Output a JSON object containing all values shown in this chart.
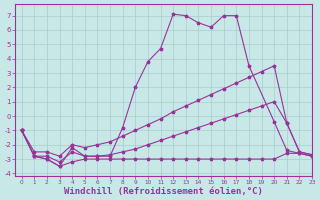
{
  "background_color": "#c8e8e8",
  "grid_color": "#a8cccc",
  "line_color": "#993399",
  "xlabel": "Windchill (Refroidissement éolien,°C)",
  "xlabel_fontsize": 6.5,
  "xlim": [
    -0.5,
    23
  ],
  "ylim": [
    -4.2,
    7.8
  ],
  "ytick_values": [
    -4,
    -3,
    -2,
    -1,
    0,
    1,
    2,
    3,
    4,
    5,
    6,
    7
  ],
  "xtick_labels": [
    "0",
    "1",
    "2",
    "3",
    "4",
    "5",
    "6",
    "7",
    "8",
    "9",
    "10",
    "11",
    "12",
    "13",
    "14",
    "15",
    "16",
    "17",
    "18",
    "19",
    "20",
    "21",
    "22",
    "23"
  ],
  "lines": [
    {
      "x": [
        0,
        1,
        2,
        3,
        4,
        5,
        6,
        7,
        8,
        9,
        10,
        11,
        12,
        13,
        14,
        15,
        16,
        17,
        18,
        20,
        21,
        22,
        23
      ],
      "y": [
        -1.0,
        -2.8,
        -3.0,
        -3.5,
        -2.2,
        -2.8,
        -2.8,
        -2.8,
        -0.8,
        2.0,
        3.8,
        4.7,
        7.1,
        7.0,
        6.5,
        6.2,
        7.0,
        7.0,
        3.5,
        -0.4,
        -2.4,
        -2.6,
        -2.8
      ]
    },
    {
      "x": [
        0,
        1,
        2,
        3,
        4,
        5,
        6,
        7,
        8,
        9,
        10,
        11,
        12,
        13,
        14,
        15,
        16,
        17,
        18,
        19,
        20,
        21,
        22,
        23
      ],
      "y": [
        -1.0,
        -2.5,
        -2.5,
        -2.8,
        -2.0,
        -2.2,
        -2.0,
        -1.8,
        -1.4,
        -1.0,
        -0.6,
        -0.2,
        0.3,
        0.7,
        1.1,
        1.5,
        1.9,
        2.3,
        2.7,
        3.1,
        3.5,
        -0.5,
        -2.5,
        -2.7
      ]
    },
    {
      "x": [
        0,
        1,
        2,
        3,
        4,
        5,
        6,
        7,
        8,
        9,
        10,
        11,
        12,
        13,
        14,
        15,
        16,
        17,
        18,
        19,
        20,
        21,
        22,
        23
      ],
      "y": [
        -1.0,
        -2.8,
        -2.8,
        -3.2,
        -2.5,
        -2.8,
        -2.8,
        -2.7,
        -2.5,
        -2.3,
        -2.0,
        -1.7,
        -1.4,
        -1.1,
        -0.8,
        -0.5,
        -0.2,
        0.1,
        0.4,
        0.7,
        1.0,
        -0.5,
        -2.5,
        -2.7
      ]
    },
    {
      "x": [
        0,
        1,
        2,
        3,
        4,
        5,
        6,
        7,
        8,
        9,
        10,
        11,
        12,
        13,
        14,
        15,
        16,
        17,
        18,
        19,
        20,
        21,
        22,
        23
      ],
      "y": [
        -1.0,
        -2.8,
        -3.0,
        -3.5,
        -3.2,
        -3.0,
        -3.0,
        -3.0,
        -3.0,
        -3.0,
        -3.0,
        -3.0,
        -3.0,
        -3.0,
        -3.0,
        -3.0,
        -3.0,
        -3.0,
        -3.0,
        -3.0,
        -3.0,
        -2.6,
        -2.6,
        -2.8
      ]
    }
  ]
}
